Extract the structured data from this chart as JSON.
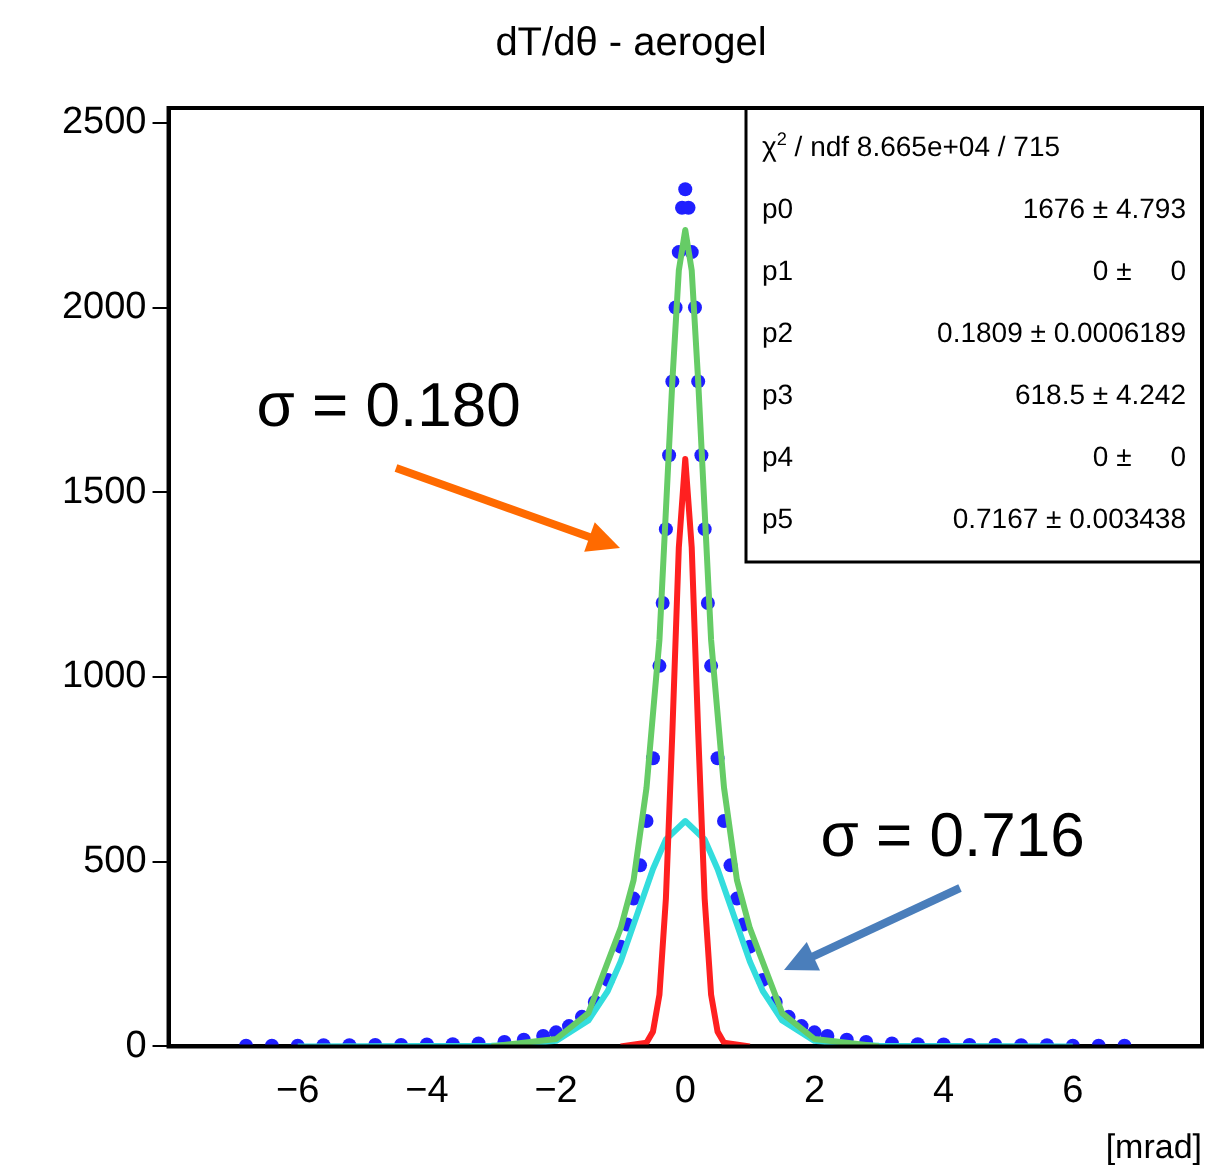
{
  "chart_data": {
    "type": "line",
    "title": "dT/dθ - aerogel",
    "xlabel": "[mrad]",
    "xlim": [
      -8,
      8
    ],
    "xticks": [
      -6,
      -4,
      -2,
      0,
      2,
      4,
      6
    ],
    "ylim": [
      0,
      2540
    ],
    "yticks": [
      0,
      500,
      1000,
      1500,
      2000,
      2500
    ],
    "grid": false,
    "legend": false,
    "marker": "none",
    "line_style": "solid",
    "series": [
      {
        "type": "scatter",
        "marker": "circle",
        "color": "#1f1fff",
        "x": [
          -6.8,
          -6.4,
          -6,
          -5.6,
          -5.2,
          -4.8,
          -4.4,
          -4,
          -3.6,
          -3.2,
          -2.8,
          -2.5,
          -2.2,
          -2,
          -1.8,
          -1.6,
          -1.4,
          -1.2,
          -1,
          -0.9,
          -0.8,
          -0.7,
          -0.6,
          -0.5,
          -0.4,
          -0.35,
          -0.3,
          -0.25,
          -0.2,
          -0.15,
          -0.1,
          -0.05,
          0,
          0.05,
          0.1,
          0.15,
          0.2,
          0.25,
          0.3,
          0.35,
          0.4,
          0.5,
          0.6,
          0.7,
          0.8,
          0.9,
          1,
          1.2,
          1.4,
          1.6,
          1.8,
          2,
          2.2,
          2.5,
          2.8,
          3.2,
          3.6,
          4,
          4.4,
          4.8,
          5.2,
          5.6,
          6,
          6.4,
          6.8
        ],
        "values": [
          2,
          2,
          2,
          3,
          3,
          4,
          4,
          5,
          6,
          8,
          12,
          18,
          28,
          38,
          55,
          80,
          120,
          180,
          270,
          330,
          400,
          490,
          610,
          780,
          1030,
          1200,
          1400,
          1600,
          1800,
          2000,
          2150,
          2270,
          2320,
          2270,
          2150,
          2000,
          1800,
          1600,
          1400,
          1200,
          1030,
          780,
          610,
          490,
          400,
          330,
          270,
          180,
          120,
          80,
          55,
          38,
          28,
          18,
          12,
          8,
          6,
          5,
          4,
          4,
          3,
          3,
          2,
          2,
          2
        ]
      },
      {
        "color": "#66cc66",
        "x": [
          -3,
          -2,
          -1.5,
          -1,
          -0.8,
          -0.6,
          -0.4,
          -0.3,
          -0.2,
          -0.1,
          0,
          0.1,
          0.2,
          0.3,
          0.4,
          0.6,
          0.8,
          1,
          1.5,
          2,
          3
        ],
        "values": [
          0,
          20,
          90,
          320,
          450,
          700,
          1100,
          1450,
          1800,
          2100,
          2210,
          2100,
          1800,
          1450,
          1100,
          700,
          450,
          320,
          90,
          20,
          0
        ]
      },
      {
        "color": "#ff2020",
        "x": [
          -1,
          -0.6,
          -0.5,
          -0.4,
          -0.3,
          -0.2,
          -0.1,
          0,
          0.1,
          0.2,
          0.3,
          0.4,
          0.5,
          0.6,
          1
        ],
        "values": [
          0,
          10,
          40,
          140,
          400,
          850,
          1350,
          1590,
          1350,
          850,
          400,
          140,
          40,
          10,
          0
        ]
      },
      {
        "color": "#33dddd",
        "x": [
          -6,
          -3,
          -2.5,
          -2,
          -1.5,
          -1.2,
          -1,
          -0.8,
          -0.5,
          -0.3,
          0,
          0.3,
          0.5,
          0.8,
          1,
          1.2,
          1.5,
          2,
          2.5,
          3,
          6
        ],
        "values": [
          0,
          2,
          5,
          15,
          70,
          150,
          230,
          330,
          480,
          560,
          610,
          560,
          480,
          330,
          230,
          150,
          70,
          15,
          5,
          2,
          0
        ]
      }
    ],
    "annotations": [
      "σ = 0.180",
      "σ = 0.716",
      "χ$^{2}$ / ndf 8.665e+04 / 715",
      "p0 1676 ± 4.793",
      "p1 0 ±     0",
      "p2 0.1809 ± 0.0006189",
      "p3 618.5 ± 4.242",
      "p4 0 ±     0",
      "p5 0.7167 ± 0.003438"
    ]
  }
}
